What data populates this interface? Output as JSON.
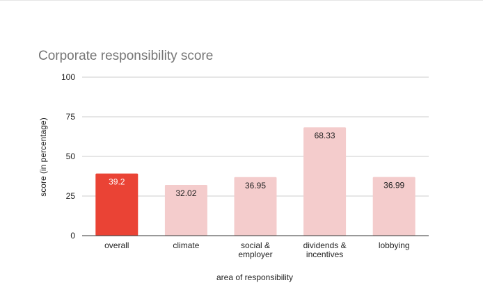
{
  "chart_data": {
    "type": "bar",
    "title": "Corporate responsibility score",
    "xlabel": "area of responsibility",
    "ylabel": "score (in percentage)",
    "categories": [
      [
        "overall"
      ],
      [
        "climate"
      ],
      [
        "social &",
        "employer"
      ],
      [
        "dividends &",
        "incentives"
      ],
      [
        "lobbying"
      ]
    ],
    "values": [
      39.2,
      32.02,
      36.95,
      68.33,
      36.99
    ],
    "value_labels": [
      "39.2",
      "32.02",
      "36.95",
      "68.33",
      "36.99"
    ],
    "ylim": [
      0,
      100
    ],
    "yticks": [
      0,
      25,
      50,
      75,
      100
    ],
    "grid": true,
    "legend": "none",
    "colors": {
      "highlight_bar": "#ea4335",
      "bar": "#f4cccc",
      "highlight_label": "#ffffff",
      "label": "#222222",
      "gridline": "#cccccc",
      "baseline": "#333333"
    },
    "highlight_index": 0
  }
}
